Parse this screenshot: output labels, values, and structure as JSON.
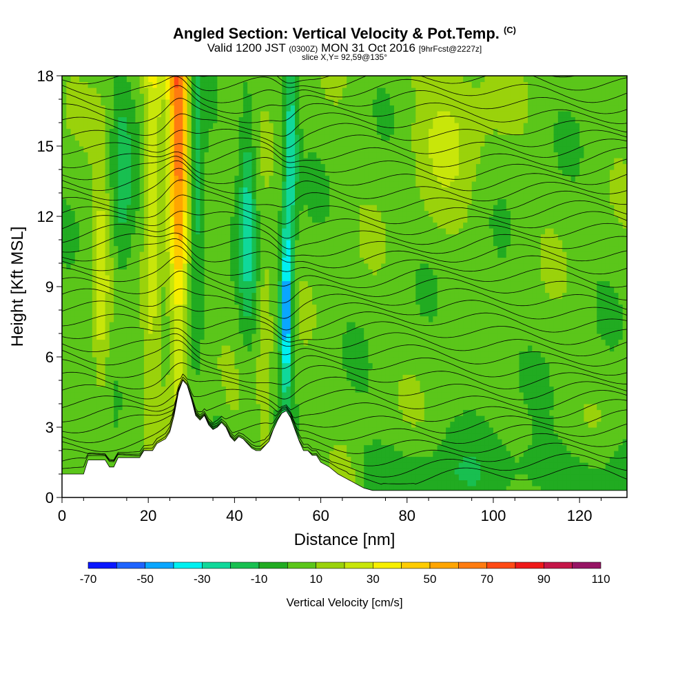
{
  "header": {
    "title": "Angled Section: Vertical Velocity & Pot.Temp.",
    "title_tag": "(C)",
    "subtitle_main": "Valid 1200 JST",
    "subtitle_zulu": "(0300Z)",
    "subtitle_date": "MON 31 Oct 2016",
    "subtitle_fcst": "[9hrFcst@2227z]",
    "slice": "slice X,Y= 92,59@135°"
  },
  "chart_data": {
    "type": "heatmap",
    "xlabel": "Distance [nm]",
    "ylabel": "Height [Kft MSL]",
    "xlim": [
      0,
      131
    ],
    "ylim": [
      0,
      18
    ],
    "x_ticks": [
      "0",
      "20",
      "40",
      "60",
      "80",
      "100",
      "120"
    ],
    "x_tick_values": [
      0,
      20,
      40,
      60,
      80,
      100,
      120
    ],
    "y_ticks": [
      "0",
      "3",
      "6",
      "9",
      "12",
      "15",
      "18"
    ],
    "y_tick_values": [
      0,
      3,
      6,
      9,
      12,
      15,
      18
    ],
    "colorbar": {
      "label": "Vertical Velocity [cm/s]",
      "tick_labels": [
        "-70",
        "-50",
        "-30",
        "-10",
        "10",
        "30",
        "50",
        "70",
        "90",
        "110"
      ],
      "bounds": [
        -70,
        -60,
        -50,
        -40,
        -30,
        -20,
        -10,
        0,
        10,
        20,
        30,
        40,
        50,
        60,
        70,
        80,
        90,
        100,
        110
      ],
      "colors": [
        "#0a18ff",
        "#1e64ff",
        "#0aa6ff",
        "#00f0f0",
        "#10d89a",
        "#18bf50",
        "#21ab21",
        "#5bc61a",
        "#9ad20b",
        "#c8e60a",
        "#f7ef00",
        "#ffcc00",
        "#ffa500",
        "#ff7c10",
        "#ff4a14",
        "#ee1919",
        "#c41648",
        "#961464"
      ]
    },
    "features": [
      {
        "name": "updraft",
        "x": 27,
        "peak_cm_s": 80,
        "top_kft": 18
      },
      {
        "name": "downdraft",
        "x": 52,
        "peak_cm_s": -60,
        "height_kft": 8
      }
    ],
    "terrain_kft": [
      [
        0,
        1
      ],
      [
        5,
        1
      ],
      [
        6,
        1.6
      ],
      [
        10,
        1.6
      ],
      [
        11,
        1.3
      ],
      [
        12,
        1.3
      ],
      [
        13,
        1.7
      ],
      [
        18,
        1.7
      ],
      [
        19,
        2
      ],
      [
        21,
        2
      ],
      [
        22,
        2.3
      ],
      [
        24,
        2.5
      ],
      [
        25,
        2.8
      ],
      [
        26,
        3.5
      ],
      [
        27,
        4.5
      ],
      [
        28,
        5
      ],
      [
        29,
        4.8
      ],
      [
        30,
        4.2
      ],
      [
        31,
        3.5
      ],
      [
        32,
        3.3
      ],
      [
        33,
        3.5
      ],
      [
        34,
        3.1
      ],
      [
        35,
        2.9
      ],
      [
        36,
        3
      ],
      [
        37,
        3.2
      ],
      [
        38,
        3
      ],
      [
        39,
        2.6
      ],
      [
        40,
        2.4
      ],
      [
        41,
        2.6
      ],
      [
        42,
        2.5
      ],
      [
        43,
        2.3
      ],
      [
        44,
        2.1
      ],
      [
        45,
        2
      ],
      [
        46,
        2
      ],
      [
        47,
        2.2
      ],
      [
        48,
        2.4
      ],
      [
        49,
        2.9
      ],
      [
        50,
        3.3
      ],
      [
        51,
        3.6
      ],
      [
        52,
        3.7
      ],
      [
        53,
        3.4
      ],
      [
        54,
        2.9
      ],
      [
        55,
        2.4
      ],
      [
        56,
        2
      ],
      [
        57,
        2
      ],
      [
        58,
        1.8
      ],
      [
        59,
        1.8
      ],
      [
        60,
        1.5
      ],
      [
        62,
        1.3
      ],
      [
        64,
        1
      ],
      [
        66,
        0.8
      ],
      [
        67,
        0.7
      ],
      [
        69,
        0.5
      ],
      [
        70,
        0.4
      ],
      [
        72,
        0.3
      ],
      [
        80,
        0.3
      ],
      [
        131,
        0.3
      ]
    ],
    "grid": false
  }
}
